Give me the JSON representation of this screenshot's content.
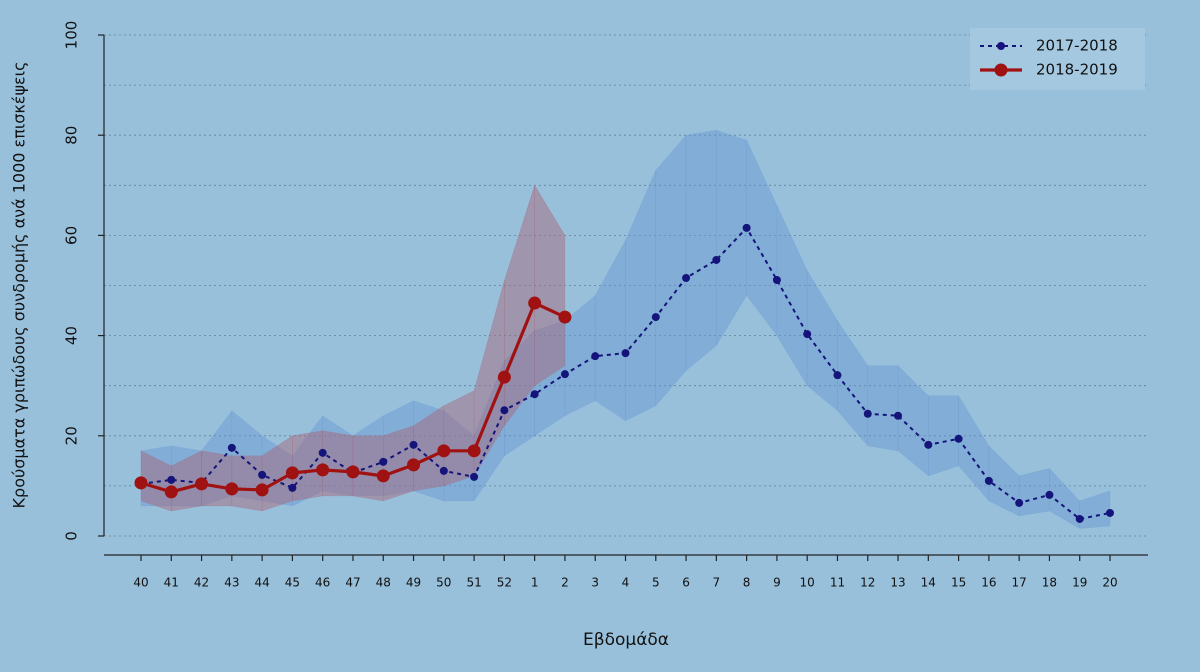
{
  "chart_data": {
    "type": "line",
    "y_label": "Κρούσματα γριπώδους συνδρομής ανά 1000 επισκέψεις",
    "x_label": "Εβδομάδα",
    "categories": [
      "40",
      "41",
      "42",
      "43",
      "44",
      "45",
      "46",
      "47",
      "48",
      "49",
      "50",
      "51",
      "52",
      "1",
      "2",
      "3",
      "4",
      "5",
      "6",
      "7",
      "8",
      "9",
      "10",
      "11",
      "12",
      "13",
      "14",
      "15",
      "16",
      "17",
      "18",
      "19",
      "20"
    ],
    "ylim": [
      0,
      100
    ],
    "yticks": [
      0,
      20,
      40,
      60,
      80,
      100
    ],
    "minor_yticks": [
      10,
      30,
      50,
      70,
      90
    ],
    "grid": true,
    "legend": "top-right",
    "series": [
      {
        "name": "2017-2018",
        "color": "#14147a",
        "band_color": "rgba(105,150,210,0.45)",
        "dashed": true,
        "values": [
          10.4,
          11.2,
          10.6,
          17.6,
          12.2,
          9.6,
          16.6,
          12.6,
          14.8,
          18.2,
          13.0,
          11.8,
          25.1,
          28.3,
          32.3,
          35.9,
          36.5,
          43.7,
          51.5,
          55.1,
          61.5,
          51.1,
          40.3,
          32.1,
          24.4,
          24.0,
          18.2,
          19.4,
          11.0,
          6.6,
          8.2,
          3.4,
          4.6
        ],
        "upper": [
          17,
          18,
          17,
          25,
          20,
          16,
          24,
          20,
          24,
          27,
          25,
          20,
          35,
          41,
          43,
          48,
          59,
          73,
          80,
          81,
          79,
          66,
          53,
          43,
          34,
          34,
          28,
          28,
          18,
          12,
          13.5,
          7,
          9
        ],
        "lower": [
          6,
          6,
          6,
          8,
          7,
          6,
          9,
          8,
          8,
          9,
          7,
          7,
          16,
          20,
          24,
          27,
          23,
          26,
          33,
          38,
          48,
          40,
          30,
          25,
          18,
          17,
          12,
          14,
          7,
          4,
          5,
          1.5,
          2
        ]
      },
      {
        "name": "2018-2019",
        "color": "#a01212",
        "band_color": "rgba(165,105,125,0.5)",
        "dashed": false,
        "values": [
          10.6,
          8.8,
          10.4,
          9.4,
          9.2,
          12.6,
          13.2,
          12.8,
          12.0,
          14.2,
          17.0,
          17.0,
          31.7,
          46.5,
          43.7,
          null,
          null,
          null,
          null,
          null,
          null,
          null,
          null,
          null,
          null,
          null,
          null,
          null,
          null,
          null,
          null,
          null,
          null
        ],
        "upper": [
          17,
          14,
          17,
          16,
          16,
          20,
          21,
          20,
          20,
          22,
          26,
          29,
          51,
          70,
          60,
          null,
          null,
          null,
          null,
          null,
          null,
          null,
          null,
          null,
          null,
          null,
          null,
          null,
          null,
          null,
          null,
          null,
          null
        ],
        "lower": [
          7,
          5,
          6,
          6,
          5,
          7,
          8,
          8,
          7,
          9,
          10,
          12,
          22,
          30,
          34,
          null,
          null,
          null,
          null,
          null,
          null,
          null,
          null,
          null,
          null,
          null,
          null,
          null,
          null,
          null,
          null,
          null,
          null
        ]
      }
    ]
  }
}
